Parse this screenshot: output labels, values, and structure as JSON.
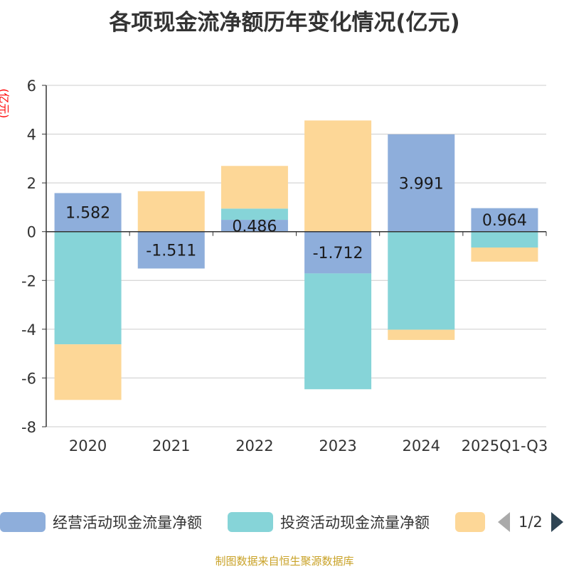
{
  "chart_data": {
    "type": "bar",
    "title": "各项现金流净额历年变化情况(亿元)",
    "ylabel": "(亿元)",
    "xlabel": "",
    "categories": [
      "2020",
      "2021",
      "2022",
      "2023",
      "2024",
      "2025Q1-Q3"
    ],
    "ylim": [
      -8,
      6
    ],
    "yticks": [
      6,
      4,
      2,
      0,
      -2,
      -4,
      -6,
      -8
    ],
    "stacked": true,
    "series": [
      {
        "name": "经营活动现金流量净额",
        "color": "#8eaedb",
        "values": [
          1.582,
          -1.511,
          0.486,
          -1.712,
          3.991,
          0.964
        ]
      },
      {
        "name": "投资活动现金流量净额",
        "color": "#86d4d8",
        "values": [
          -4.62,
          0.0,
          0.46,
          -4.75,
          -4.02,
          -0.65
        ]
      },
      {
        "name": "",
        "color": "#fdd797",
        "values": [
          -2.28,
          1.66,
          1.75,
          4.56,
          -0.42,
          -0.58
        ]
      }
    ],
    "data_labels": [
      "1.582",
      "-1.511",
      "0.486",
      "-1.712",
      "3.991",
      "0.964"
    ]
  },
  "legend": {
    "items": [
      "经营活动现金流量净额",
      "投资活动现金流量净额",
      ""
    ],
    "page": "1/2"
  },
  "source": "制图数据来自恒生聚源数据库"
}
